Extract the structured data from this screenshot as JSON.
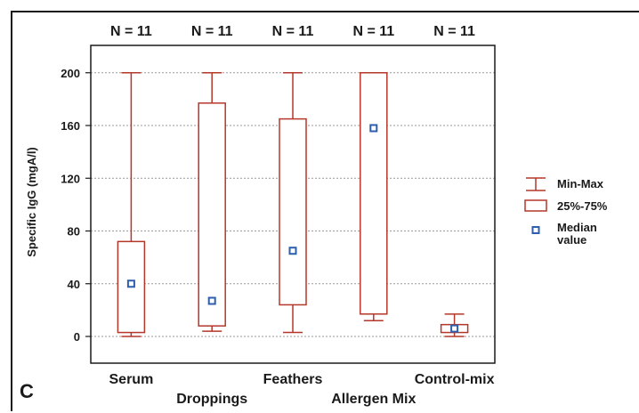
{
  "panel_label": "C",
  "colors": {
    "box": "#b5372a",
    "median": "#2d5fae",
    "grid": "#9a9a9a",
    "axis": "#1a1a1a"
  },
  "chart_data": {
    "type": "boxplot",
    "title": "",
    "ylabel": "Specific IgG (mgA/l)",
    "xlabel": "",
    "ylim": [
      -20,
      210
    ],
    "yticks": [
      0,
      40,
      80,
      120,
      160,
      200
    ],
    "grid": true,
    "legend_position": "right",
    "categories": [
      "Serum",
      "Droppings",
      "Feathers",
      "Allergen Mix",
      "Control-mix"
    ],
    "n_labels": [
      "N = 11",
      "N = 11",
      "N = 11",
      "N = 11",
      "N = 11"
    ],
    "min": [
      0,
      4,
      3,
      12,
      0
    ],
    "q1": [
      3,
      8,
      24,
      17,
      3
    ],
    "median": [
      40,
      27,
      65,
      158,
      6
    ],
    "q3": [
      72,
      177,
      165,
      200,
      9
    ],
    "max": [
      200,
      200,
      200,
      200,
      17
    ],
    "legend": [
      "Min-Max",
      "25%-75%",
      "Median value"
    ]
  }
}
